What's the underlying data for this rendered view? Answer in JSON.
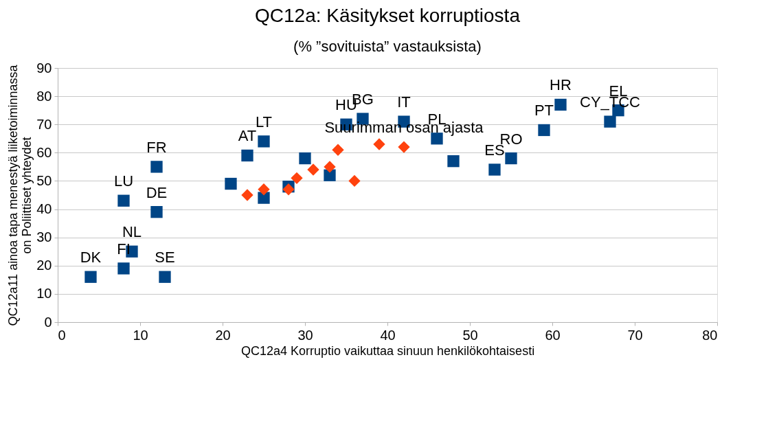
{
  "chart_data": {
    "type": "scatter",
    "title": "QC12a: Käsitykset korruptiosta",
    "subtitle": "(% ”sovituista” vastauksista)",
    "xlabel": "QC12a4 Korruptio vaikuttaa sinuun henkilökohtaisesti",
    "ylabel": "QC12a11 ainoa tapa menestyä liiketoiminnassa on Poliittiset yhteydet",
    "xlim": [
      0,
      80
    ],
    "xticks": [
      0,
      10,
      20,
      30,
      40,
      50,
      60,
      70,
      80
    ],
    "ylim": [
      0,
      90
    ],
    "yticks": [
      0,
      10,
      20,
      30,
      40,
      50,
      60,
      70,
      80,
      90
    ],
    "grid": "y",
    "series": [
      {
        "color": "#004586",
        "marker": "square",
        "x": [
          4,
          8,
          9,
          8,
          12,
          12,
          13,
          25,
          23,
          21,
          25,
          28,
          30,
          33,
          35,
          37,
          42,
          46,
          48,
          53,
          55,
          59,
          61,
          67,
          68
        ],
        "values": [
          16,
          19,
          25,
          43,
          39,
          55,
          16,
          64,
          59,
          49,
          44,
          48,
          58,
          52,
          70,
          72,
          71,
          65,
          57,
          54,
          58,
          68,
          77,
          71,
          75
        ],
        "value_labels": [
          "DK",
          "FI",
          "NL",
          "LU",
          "DE",
          "FR",
          "SE",
          "LT",
          "AT",
          null,
          null,
          null,
          null,
          null,
          "HU",
          "BG",
          "IT",
          "PL",
          null,
          "ES",
          "RO",
          "PT",
          "HR",
          "CY_TCC",
          "EL"
        ]
      },
      {
        "color": "#ff420e",
        "marker": "diamond",
        "x": [
          23,
          25,
          28,
          29,
          31,
          33,
          34,
          36,
          39,
          42
        ],
        "values": [
          45,
          47,
          47,
          51,
          54,
          55,
          61,
          50,
          63,
          62
        ],
        "value_labels": [
          null,
          null,
          null,
          null,
          null,
          null,
          null,
          null,
          null,
          "Suurimman osan ajasta"
        ]
      }
    ]
  }
}
